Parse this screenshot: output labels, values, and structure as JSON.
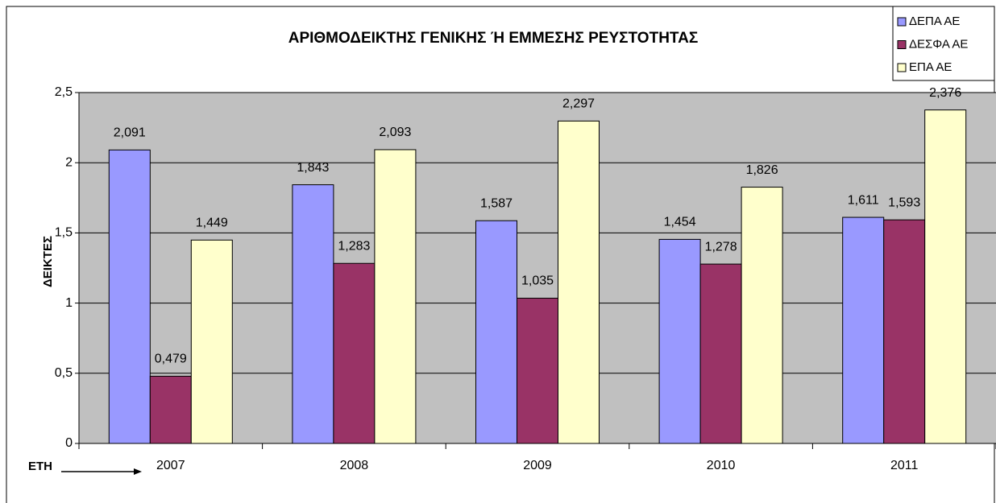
{
  "chart_data": {
    "type": "bar",
    "title": "ΑΡΙΘΜΟΔΕΙΚΤΗΣ ΓΕΝΙΚΗΣ Ή ΕΜΜΕΣΗΣ ΡΕΥΣΤΟΤΗΤΑΣ",
    "y_label": "ΔΕΙΚΤΕΣ",
    "x_label": "ΕΤΗ",
    "categories": [
      "2007",
      "2008",
      "2009",
      "2010",
      "2011"
    ],
    "series": [
      {
        "name": "ΔΕΠΑ ΑΕ",
        "color": "#9999ff",
        "values": [
          2.091,
          1.843,
          1.587,
          1.454,
          1.611
        ],
        "value_labels": [
          "2,091",
          "1,843",
          "1,587",
          "1,454",
          "1,611"
        ]
      },
      {
        "name": "ΔΕΣΦΑ ΑΕ",
        "color": "#993366",
        "values": [
          0.479,
          1.283,
          1.035,
          1.278,
          1.593
        ],
        "value_labels": [
          "0,479",
          "1,283",
          "1,035",
          "1,278",
          "1,593"
        ]
      },
      {
        "name": "ΕΠΑ ΑΕ",
        "color": "#ffffcc",
        "values": [
          1.449,
          2.093,
          2.297,
          1.826,
          2.376
        ],
        "value_labels": [
          "1,449",
          "2,093",
          "2,297",
          "1,826",
          "2,376"
        ]
      }
    ],
    "ylim": [
      0,
      2.5
    ],
    "yticks": [
      0,
      {
        "value": 0.5,
        "label": "0,5"
      },
      1,
      {
        "value": 1.5,
        "label": "1,5"
      },
      2,
      {
        "value": 2.5,
        "label": "2,5"
      }
    ],
    "grid": true,
    "legend": "top-right"
  }
}
